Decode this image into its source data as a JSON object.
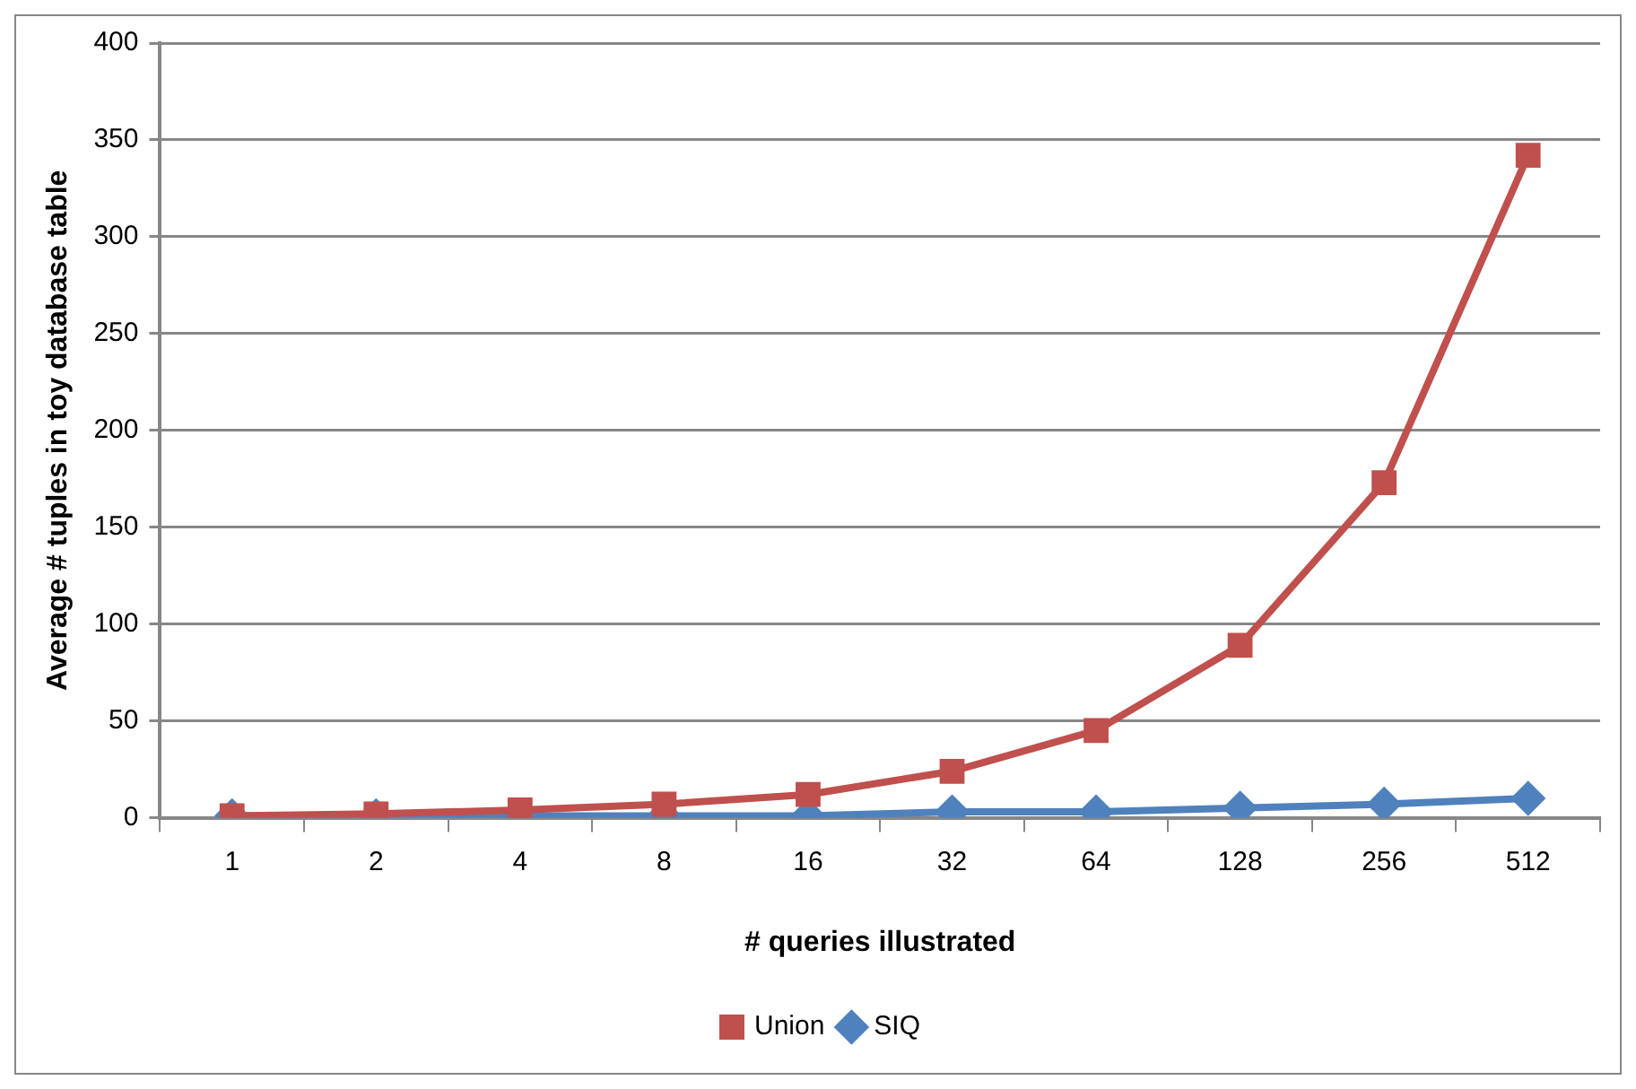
{
  "chart_data": {
    "type": "line",
    "xlabel": "# queries illustrated",
    "ylabel": "Average # tuples in toy database table",
    "categories": [
      "1",
      "2",
      "4",
      "8",
      "16",
      "32",
      "64",
      "128",
      "256",
      "512"
    ],
    "series": [
      {
        "name": "SIQ",
        "color": "#4f81bd",
        "marker": "diamond",
        "values": [
          1,
          1,
          1,
          1,
          1,
          3,
          3,
          5,
          7,
          10
        ]
      },
      {
        "name": "Union",
        "color": "#c0504d",
        "marker": "square",
        "values": [
          1,
          2,
          4,
          7,
          12,
          24,
          45,
          89,
          173,
          342
        ]
      }
    ],
    "ylim": [
      0,
      400
    ],
    "yticks": [
      0,
      50,
      100,
      150,
      200,
      250,
      300,
      350,
      400
    ],
    "grid": "y",
    "legend": "bottom"
  }
}
